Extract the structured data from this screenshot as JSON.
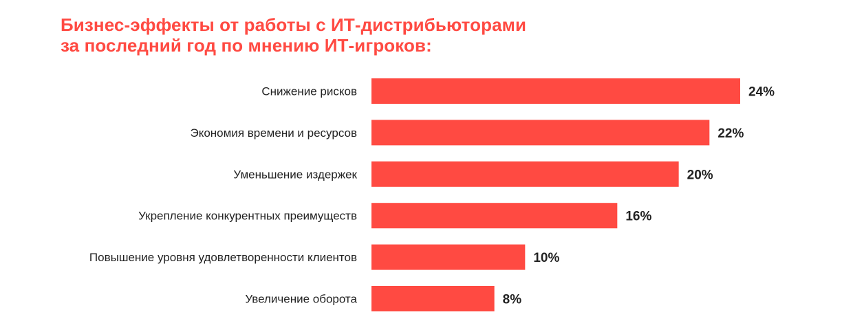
{
  "chart_data": {
    "type": "bar",
    "orientation": "horizontal",
    "title_lines": [
      "Бизнес-эффекты от работы с ИТ-дистрибьюторами",
      "за последний год по мнению ИТ-игроков:"
    ],
    "categories": [
      "Снижение рисков",
      "Экономия времени и ресурсов",
      "Уменьшение издержек",
      "Укрепление конкурентных преимуществ",
      "Повышение уровня удовлетворенности клиентов",
      "Увеличение оборота"
    ],
    "values": [
      24,
      22,
      20,
      16,
      10,
      8
    ],
    "value_labels": [
      "24%",
      "22%",
      "20%",
      "16%",
      "10%",
      "8%"
    ],
    "unit": "%",
    "xlim": [
      0,
      24
    ],
    "grid": false,
    "legend": "none",
    "colors": {
      "bar": "#ff4a42",
      "title": "#ff4a42",
      "text": "#222222"
    }
  }
}
